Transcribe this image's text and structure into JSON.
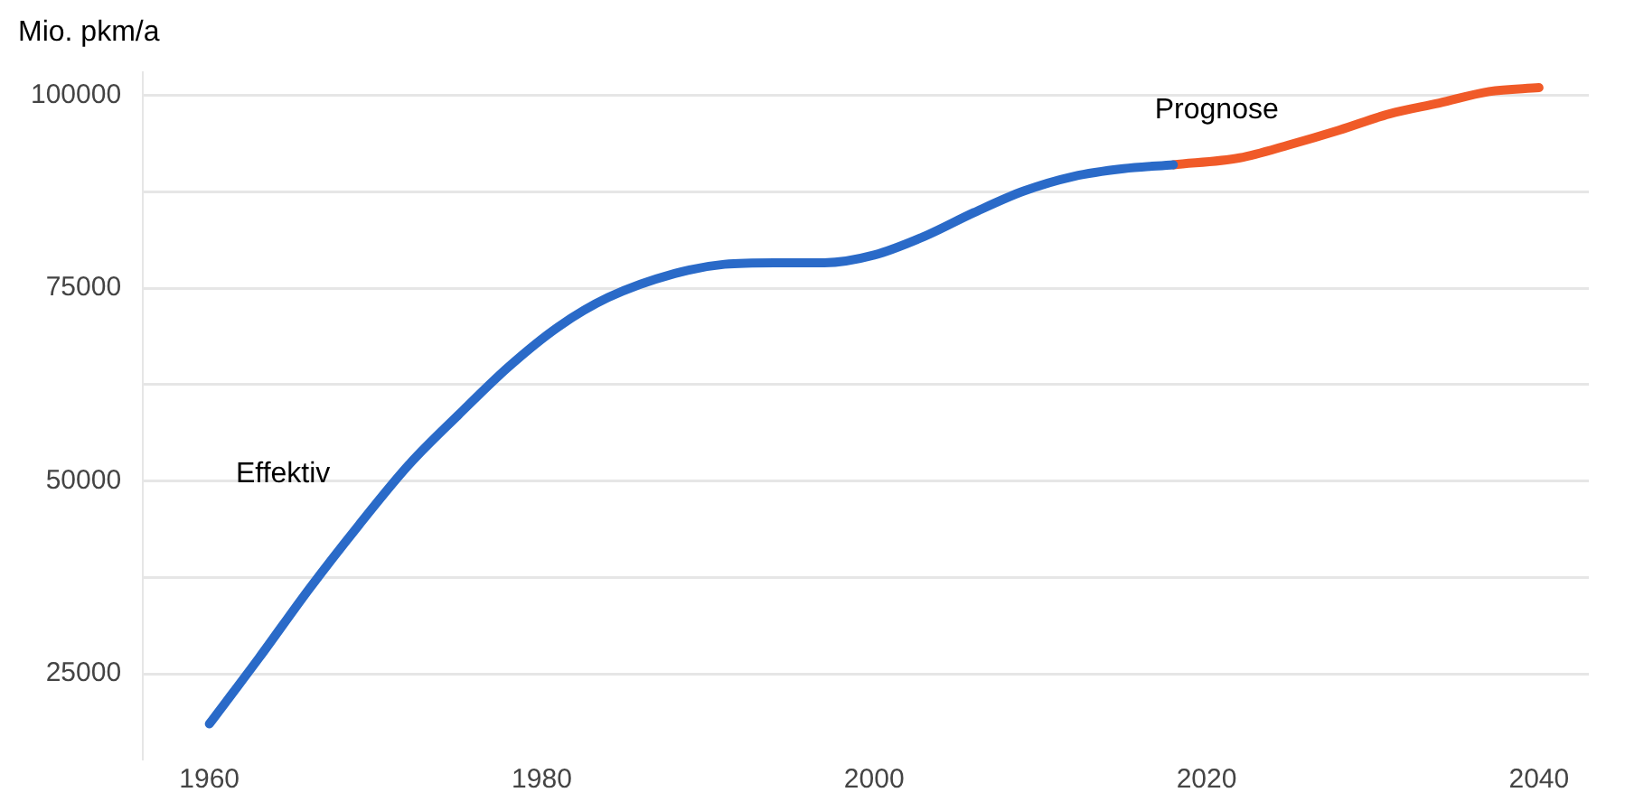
{
  "chart_data": {
    "type": "line",
    "ylabel": "Mio. pkm/a",
    "xlim": [
      1956,
      2043
    ],
    "xticks": [
      1960,
      1980,
      2000,
      2020,
      2040
    ],
    "ylim": [
      14000,
      103000
    ],
    "yticks": [
      25000,
      {
        "value": 37500,
        "label": null
      },
      50000,
      {
        "value": 62500,
        "label": null
      },
      75000,
      {
        "value": 87500,
        "label": null
      },
      100000
    ],
    "grid": "y",
    "legend": false,
    "marker": "none",
    "line_style": "solid",
    "series": [
      {
        "name": "Effektiv",
        "color": "#2a6ac8",
        "x": [
          1960,
          1963,
          1966,
          1969,
          1972,
          1975,
          1978,
          1981,
          1984,
          1988,
          1991,
          1994,
          1997,
          2000,
          2003,
          2006,
          2009,
          2012,
          2015,
          2018
        ],
        "values": [
          18500,
          27100,
          36000,
          44300,
          52100,
          58600,
          64800,
          70000,
          73800,
          76900,
          78100,
          78300,
          78300,
          79300,
          81700,
          84800,
          87600,
          89500,
          90500,
          91000
        ]
      },
      {
        "name": "Prognose",
        "color": "#f05a28",
        "x": [
          2018,
          2022,
          2025,
          2028,
          2031,
          2034,
          2037,
          2040
        ],
        "values": [
          91000,
          91900,
          93600,
          95500,
          97600,
          99000,
          100500,
          101000
        ]
      }
    ]
  }
}
